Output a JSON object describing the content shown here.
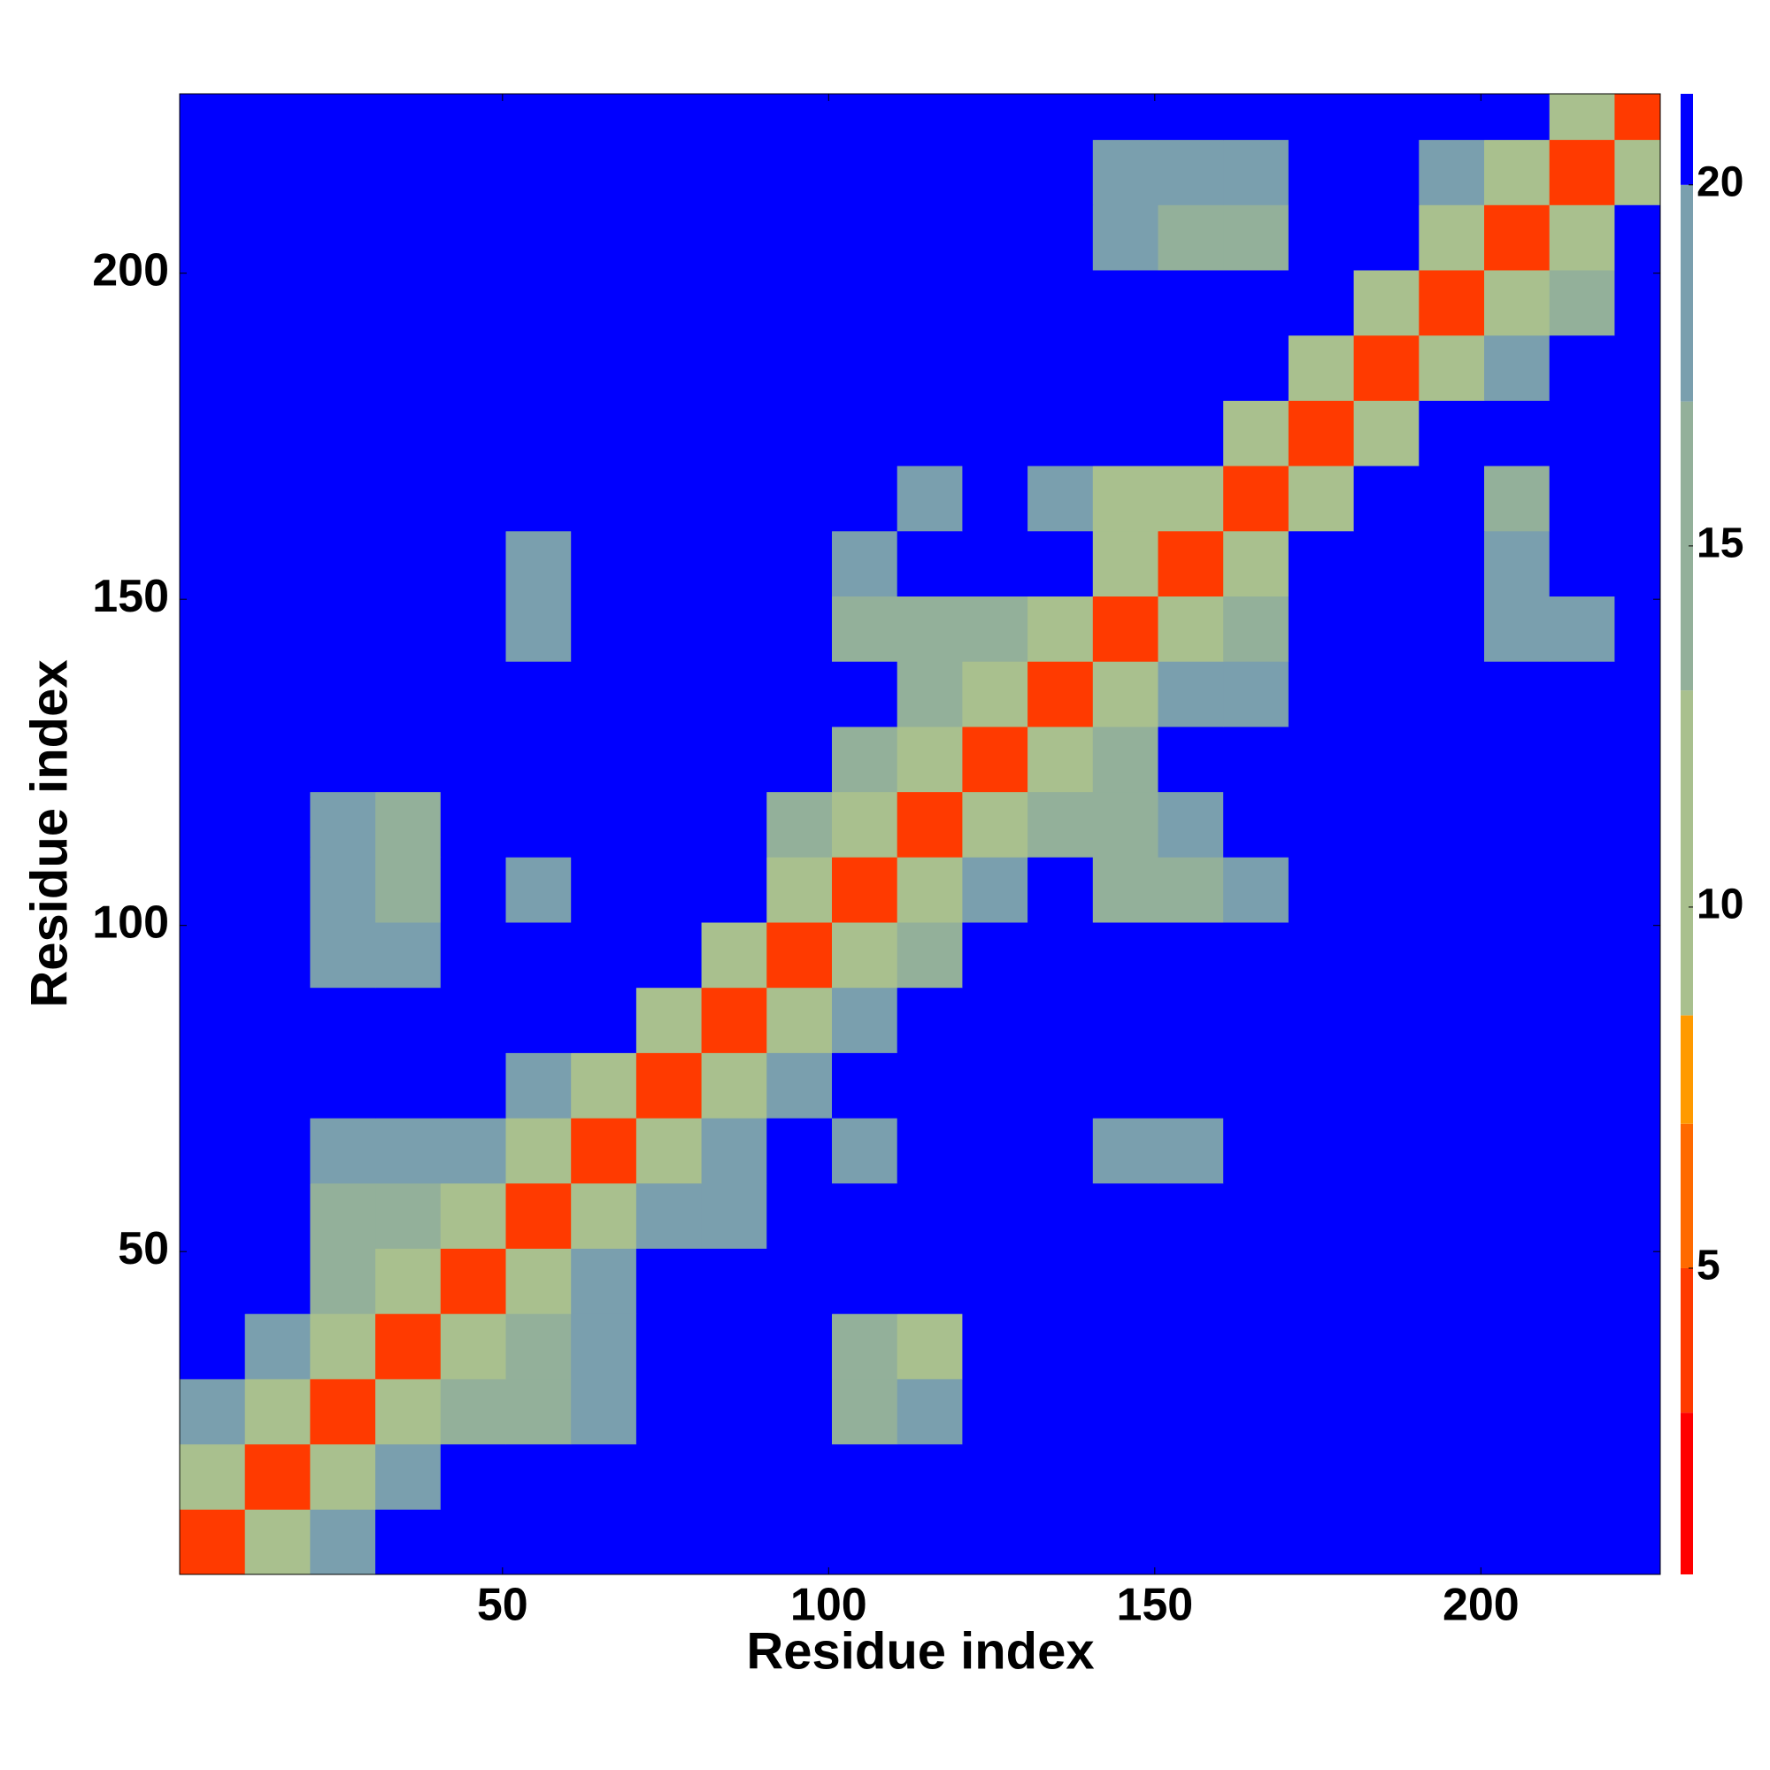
{
  "chart_data": {
    "type": "heatmap",
    "xlabel": "Residue index",
    "ylabel": "Residue index",
    "xlim": [
      0.5,
      227.5
    ],
    "ylim": [
      0.5,
      227.5
    ],
    "xticks": [
      50,
      100,
      150,
      200
    ],
    "yticks": [
      50,
      100,
      150,
      200
    ],
    "x_edges": [
      0.5,
      10.5,
      20.5,
      30.5,
      40.5,
      50.5,
      60.5,
      70.5,
      80.5,
      90.5,
      100.5,
      110.5,
      120.5,
      130.5,
      140.5,
      150.5,
      160.5,
      170.5,
      180.5,
      190.5,
      200.5,
      210.5,
      220.5,
      227.5
    ],
    "y_edges": [
      0.5,
      10.5,
      20.5,
      30.5,
      40.5,
      50.5,
      60.5,
      70.5,
      80.5,
      90.5,
      100.5,
      110.5,
      120.5,
      130.5,
      140.5,
      150.5,
      160.5,
      170.5,
      180.5,
      190.5,
      200.5,
      210.5,
      220.5,
      227.5
    ],
    "clim": [
      0.76,
      21.26
    ],
    "cticks": [
      5,
      10,
      15,
      20
    ],
    "colorscale": [
      [
        0.76,
        "#ff0000"
      ],
      [
        3,
        "#ff3a00"
      ],
      [
        5,
        "#ff6a00"
      ],
      [
        7,
        "#ff9a00"
      ],
      [
        8.5,
        "#a9c08e"
      ],
      [
        13,
        "#93b09a"
      ],
      [
        17,
        "#7a9fae"
      ],
      [
        20,
        "#0000ff"
      ]
    ],
    "z": [
      [
        4,
        12,
        17,
        21,
        21,
        21,
        21,
        21,
        21,
        21,
        21,
        21,
        21,
        21,
        21,
        21,
        21,
        21,
        21,
        21,
        21,
        21,
        21
      ],
      [
        12,
        4,
        12,
        17,
        21,
        21,
        21,
        21,
        21,
        21,
        21,
        21,
        21,
        21,
        21,
        21,
        21,
        21,
        21,
        21,
        21,
        21,
        21
      ],
      [
        17,
        12,
        4,
        12,
        15,
        16,
        18,
        21,
        21,
        21,
        16,
        17,
        21,
        21,
        21,
        21,
        21,
        21,
        21,
        21,
        21,
        21,
        21
      ],
      [
        21,
        17,
        12,
        4,
        12,
        15,
        18,
        21,
        21,
        21,
        15,
        11,
        21,
        21,
        21,
        20,
        21,
        21,
        21,
        21,
        21,
        21,
        21
      ],
      [
        21,
        21,
        15,
        12,
        4,
        12,
        17,
        21,
        21,
        21,
        21,
        21,
        21,
        21,
        21,
        21,
        21,
        21,
        21,
        21,
        21,
        21,
        21
      ],
      [
        21,
        21,
        13,
        14,
        12,
        4,
        12,
        17,
        19,
        21,
        21,
        21,
        21,
        21,
        21,
        21,
        21,
        21,
        21,
        21,
        21,
        21,
        21
      ],
      [
        21,
        21,
        17,
        17,
        17,
        12,
        4,
        12,
        17,
        21,
        19,
        21,
        21,
        21,
        19,
        19,
        21,
        21,
        21,
        21,
        21,
        21,
        21
      ],
      [
        21,
        21,
        21,
        21,
        21,
        17,
        12,
        4,
        12,
        18,
        21,
        21,
        21,
        21,
        21,
        21,
        21,
        21,
        21,
        21,
        21,
        21,
        21
      ],
      [
        21,
        21,
        21,
        21,
        21,
        21,
        21,
        12,
        4,
        12,
        17,
        21,
        21,
        21,
        21,
        21,
        21,
        21,
        21,
        21,
        21,
        21,
        21
      ],
      [
        21,
        21,
        18,
        18,
        21,
        21,
        21,
        21,
        12,
        4,
        12,
        16,
        21,
        21,
        21,
        21,
        21,
        21,
        21,
        21,
        21,
        21,
        21
      ],
      [
        21,
        21,
        17,
        15,
        21,
        19,
        21,
        21,
        21,
        12,
        4,
        10,
        17,
        21,
        15,
        16,
        18,
        21,
        21,
        21,
        21,
        21,
        21
      ],
      [
        21,
        21,
        18,
        16,
        21,
        21,
        21,
        21,
        21,
        16,
        10,
        4,
        12,
        15,
        16,
        17,
        21,
        21,
        21,
        21,
        21,
        21,
        21
      ],
      [
        21,
        21,
        21,
        21,
        21,
        21,
        21,
        21,
        21,
        21,
        16,
        12,
        4,
        12,
        16,
        21,
        21,
        21,
        21,
        21,
        21,
        21,
        21
      ],
      [
        21,
        21,
        21,
        21,
        21,
        21,
        21,
        21,
        21,
        21,
        21,
        15,
        12,
        4,
        12,
        17,
        19,
        21,
        21,
        21,
        21,
        21,
        21
      ],
      [
        21,
        21,
        21,
        21,
        21,
        18,
        21,
        21,
        21,
        21,
        15,
        16,
        16,
        12,
        4,
        12,
        14,
        21,
        21,
        21,
        17,
        17,
        21
      ],
      [
        21,
        21,
        21,
        21,
        21,
        18,
        21,
        21,
        21,
        21,
        17,
        21,
        21,
        21,
        12,
        4,
        12,
        21,
        21,
        21,
        17,
        21,
        21
      ],
      [
        21,
        21,
        21,
        21,
        21,
        21,
        21,
        21,
        21,
        21,
        21,
        17,
        21,
        17,
        12,
        12,
        4,
        12,
        21,
        21,
        15,
        21,
        21
      ],
      [
        21,
        21,
        21,
        21,
        21,
        21,
        21,
        21,
        21,
        21,
        21,
        21,
        21,
        21,
        21,
        21,
        12,
        4,
        12,
        21,
        21,
        21,
        21
      ],
      [
        21,
        21,
        21,
        21,
        21,
        21,
        21,
        21,
        21,
        21,
        21,
        21,
        21,
        21,
        21,
        21,
        21,
        12,
        4,
        12,
        17,
        21,
        21
      ],
      [
        21,
        21,
        21,
        21,
        21,
        21,
        21,
        21,
        21,
        21,
        21,
        21,
        21,
        21,
        21,
        21,
        21,
        21,
        12,
        4,
        12,
        16,
        21
      ],
      [
        21,
        21,
        21,
        21,
        21,
        21,
        21,
        21,
        21,
        21,
        21,
        21,
        21,
        21,
        18,
        16,
        14,
        21,
        21,
        12,
        4,
        12,
        21
      ],
      [
        21,
        21,
        21,
        21,
        21,
        21,
        21,
        21,
        21,
        21,
        21,
        21,
        21,
        21,
        18,
        18,
        19,
        21,
        21,
        17,
        12,
        4,
        12
      ],
      [
        21,
        21,
        21,
        21,
        21,
        21,
        21,
        21,
        21,
        21,
        21,
        21,
        21,
        21,
        21,
        21,
        21,
        21,
        21,
        21,
        21,
        12,
        4
      ]
    ]
  }
}
